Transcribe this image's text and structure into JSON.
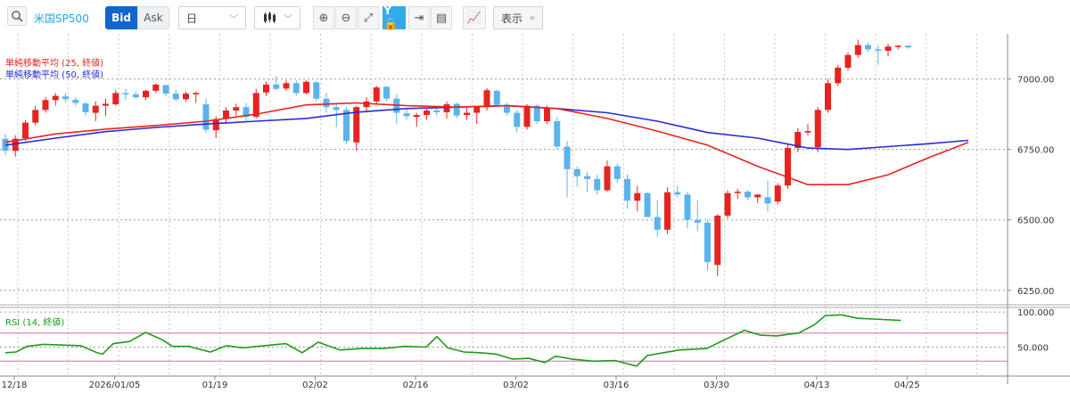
{
  "toolbar": {
    "symbol": "米国SP500",
    "bid_label": "Bid",
    "ask_label": "Ask",
    "period": "日",
    "display_label": "表示"
  },
  "indicators": {
    "sma25": "単純移動平均 (25, 終値)",
    "sma50": "単純移動平均 (50, 終値)",
    "rsi": "RSI (14, 終値)"
  },
  "colors": {
    "up": "#e8231f",
    "down": "#5ab4ec",
    "sma25": "#e8231f",
    "sma50": "#2a2ad6",
    "rsi": "#1e9a1e",
    "rsi_band": "#e06aa0",
    "accent": "#1166cc"
  },
  "chart_data": {
    "type": "candlestick",
    "price_axis": {
      "ticks": [
        6250,
        6500,
        6750,
        7000
      ],
      "tick_labels": [
        "6250.00",
        "6500.00",
        "6750.00",
        "7000.00"
      ],
      "range": [
        6205,
        7160
      ]
    },
    "rsi_axis": {
      "ticks": [
        50,
        100
      ],
      "tick_labels": [
        "50.000",
        "100.000"
      ],
      "range": [
        10,
        104
      ],
      "bands": [
        30,
        70
      ]
    },
    "x_labels": [
      "12/18",
      "2026/01/05",
      "01/19",
      "02/02",
      "02/16",
      "03/02",
      "03/16",
      "03/30",
      "04/13",
      "04/25"
    ],
    "x_label_index": [
      0,
      10,
      20,
      30,
      40,
      50,
      60,
      70,
      80,
      89
    ],
    "ohlc": [
      [
        6788,
        6805,
        6730,
        6745
      ],
      [
        6745,
        6800,
        6725,
        6788
      ],
      [
        6790,
        6855,
        6780,
        6845
      ],
      [
        6845,
        6905,
        6835,
        6890
      ],
      [
        6890,
        6935,
        6880,
        6925
      ],
      [
        6925,
        6950,
        6905,
        6940
      ],
      [
        6938,
        6950,
        6918,
        6928
      ],
      [
        6926,
        6935,
        6905,
        6915
      ],
      [
        6913,
        6918,
        6870,
        6882
      ],
      [
        6880,
        6920,
        6850,
        6905
      ],
      [
        6905,
        6930,
        6870,
        6912
      ],
      [
        6910,
        6960,
        6905,
        6950
      ],
      [
        6950,
        6965,
        6925,
        6945
      ],
      [
        6945,
        6955,
        6930,
        6935
      ],
      [
        6935,
        6962,
        6925,
        6958
      ],
      [
        6958,
        6985,
        6950,
        6980
      ],
      [
        6978,
        6980,
        6938,
        6948
      ],
      [
        6948,
        6962,
        6920,
        6928
      ],
      [
        6928,
        6955,
        6920,
        6948
      ],
      [
        6950,
        6955,
        6915,
        6950
      ],
      [
        6910,
        6930,
        6810,
        6820
      ],
      [
        6818,
        6868,
        6790,
        6858
      ],
      [
        6858,
        6900,
        6840,
        6888
      ],
      [
        6888,
        6912,
        6870,
        6900
      ],
      [
        6900,
        6915,
        6850,
        6865
      ],
      [
        6866,
        6965,
        6860,
        6950
      ],
      [
        6952,
        6990,
        6940,
        6980
      ],
      [
        6980,
        7010,
        6960,
        6965
      ],
      [
        6966,
        6995,
        6958,
        6985
      ],
      [
        6985,
        6995,
        6940,
        6950
      ],
      [
        6950,
        6995,
        6945,
        6990
      ],
      [
        6988,
        6992,
        6920,
        6930
      ],
      [
        6930,
        6950,
        6880,
        6900
      ],
      [
        6900,
        6915,
        6830,
        6890
      ],
      [
        6890,
        6900,
        6770,
        6780
      ],
      [
        6775,
        6905,
        6745,
        6900
      ],
      [
        6900,
        6935,
        6880,
        6920
      ],
      [
        6920,
        6975,
        6910,
        6970
      ],
      [
        6972,
        6975,
        6920,
        6930
      ],
      [
        6930,
        6945,
        6840,
        6880
      ],
      [
        6878,
        6895,
        6855,
        6868
      ],
      [
        6865,
        6880,
        6830,
        6872
      ],
      [
        6872,
        6895,
        6855,
        6888
      ],
      [
        6888,
        6900,
        6870,
        6882
      ],
      [
        6882,
        6920,
        6860,
        6910
      ],
      [
        6912,
        6915,
        6860,
        6870
      ],
      [
        6872,
        6900,
        6855,
        6880
      ],
      [
        6880,
        6895,
        6840,
        6900
      ],
      [
        6900,
        6968,
        6888,
        6960
      ],
      [
        6958,
        6962,
        6905,
        6908
      ],
      [
        6908,
        6915,
        6870,
        6880
      ],
      [
        6880,
        6890,
        6810,
        6830
      ],
      [
        6830,
        6910,
        6820,
        6905
      ],
      [
        6905,
        6910,
        6840,
        6850
      ],
      [
        6850,
        6905,
        6840,
        6895
      ],
      [
        6850,
        6865,
        6750,
        6760
      ],
      [
        6760,
        6780,
        6580,
        6680
      ],
      [
        6680,
        6690,
        6620,
        6655
      ],
      [
        6655,
        6670,
        6600,
        6645
      ],
      [
        6645,
        6660,
        6590,
        6605
      ],
      [
        6605,
        6710,
        6600,
        6690
      ],
      [
        6690,
        6700,
        6630,
        6645
      ],
      [
        6645,
        6660,
        6540,
        6568
      ],
      [
        6568,
        6620,
        6530,
        6595
      ],
      [
        6595,
        6598,
        6510,
        6510
      ],
      [
        6510,
        6570,
        6440,
        6465
      ],
      [
        6465,
        6615,
        6450,
        6598
      ],
      [
        6598,
        6620,
        6580,
        6590
      ],
      [
        6590,
        6600,
        6470,
        6500
      ],
      [
        6500,
        6570,
        6460,
        6490
      ],
      [
        6490,
        6500,
        6320,
        6350
      ],
      [
        6340,
        6520,
        6300,
        6515
      ],
      [
        6515,
        6605,
        6505,
        6595
      ],
      [
        6595,
        6610,
        6575,
        6600
      ],
      [
        6600,
        6605,
        6570,
        6580
      ],
      [
        6580,
        6590,
        6560,
        6590
      ],
      [
        6580,
        6640,
        6530,
        6558
      ],
      [
        6565,
        6630,
        6555,
        6622
      ],
      [
        6622,
        6770,
        6610,
        6755
      ],
      [
        6755,
        6825,
        6740,
        6812
      ],
      [
        6810,
        6840,
        6800,
        6815
      ],
      [
        6758,
        6900,
        6740,
        6890
      ],
      [
        6890,
        7000,
        6880,
        6985
      ],
      [
        6985,
        7050,
        6975,
        7040
      ],
      [
        7040,
        7095,
        7030,
        7085
      ],
      [
        7085,
        7140,
        7075,
        7120
      ],
      [
        7120,
        7130,
        7095,
        7105
      ],
      [
        7105,
        7120,
        7050,
        7100
      ],
      [
        7100,
        7125,
        7080,
        7115
      ],
      [
        7115,
        7120,
        7105,
        7118
      ],
      [
        7118,
        7120,
        7108,
        7112
      ]
    ],
    "sma25": [
      [
        0,
        6775
      ],
      [
        5,
        6805
      ],
      [
        10,
        6822
      ],
      [
        15,
        6835
      ],
      [
        20,
        6850
      ],
      [
        25,
        6875
      ],
      [
        30,
        6908
      ],
      [
        35,
        6915
      ],
      [
        40,
        6905
      ],
      [
        45,
        6900
      ],
      [
        50,
        6905
      ],
      [
        55,
        6895
      ],
      [
        60,
        6860
      ],
      [
        65,
        6815
      ],
      [
        70,
        6765
      ],
      [
        75,
        6690
      ],
      [
        80,
        6625
      ],
      [
        84,
        6625
      ],
      [
        88,
        6660
      ],
      [
        92,
        6720
      ],
      [
        96,
        6775
      ]
    ],
    "sma50": [
      [
        0,
        6765
      ],
      [
        5,
        6790
      ],
      [
        10,
        6813
      ],
      [
        15,
        6828
      ],
      [
        20,
        6840
      ],
      [
        25,
        6850
      ],
      [
        30,
        6860
      ],
      [
        35,
        6882
      ],
      [
        40,
        6895
      ],
      [
        45,
        6900
      ],
      [
        50,
        6905
      ],
      [
        55,
        6895
      ],
      [
        60,
        6880
      ],
      [
        65,
        6850
      ],
      [
        70,
        6810
      ],
      [
        75,
        6790
      ],
      [
        80,
        6755
      ],
      [
        84,
        6750
      ],
      [
        88,
        6760
      ],
      [
        92,
        6770
      ],
      [
        96,
        6782
      ]
    ],
    "rsi": [
      [
        0,
        42
      ],
      [
        2,
        43
      ],
      [
        4,
        51
      ],
      [
        7,
        54
      ],
      [
        10,
        53
      ],
      [
        14,
        52
      ],
      [
        17,
        42
      ],
      [
        18,
        40
      ],
      [
        20,
        55
      ],
      [
        23,
        58
      ],
      [
        26,
        71
      ],
      [
        29,
        61
      ],
      [
        31,
        51
      ],
      [
        34,
        51
      ],
      [
        38,
        43
      ],
      [
        41,
        52
      ],
      [
        44,
        49
      ],
      [
        48,
        52
      ],
      [
        52,
        55
      ],
      [
        55,
        42
      ],
      [
        58,
        57
      ],
      [
        62,
        46
      ],
      [
        66,
        48
      ],
      [
        70,
        48
      ],
      [
        74,
        51
      ],
      [
        78,
        50
      ],
      [
        80,
        65
      ],
      [
        82,
        49
      ],
      [
        85,
        43
      ],
      [
        88,
        42
      ],
      [
        91,
        40
      ],
      [
        94,
        33
      ],
      [
        97,
        34
      ],
      [
        100,
        28
      ],
      [
        102,
        37
      ],
      [
        105,
        33
      ],
      [
        109,
        30
      ],
      [
        113,
        31
      ],
      [
        117,
        23
      ],
      [
        119,
        38
      ],
      [
        122,
        42
      ],
      [
        125,
        46
      ],
      [
        130,
        48
      ],
      [
        134,
        63
      ],
      [
        137,
        74
      ],
      [
        140,
        67
      ],
      [
        143,
        66
      ],
      [
        147,
        70
      ],
      [
        150,
        82
      ],
      [
        152,
        95
      ],
      [
        155,
        96
      ],
      [
        158,
        91
      ],
      [
        161,
        90
      ],
      [
        166,
        88
      ]
    ]
  }
}
